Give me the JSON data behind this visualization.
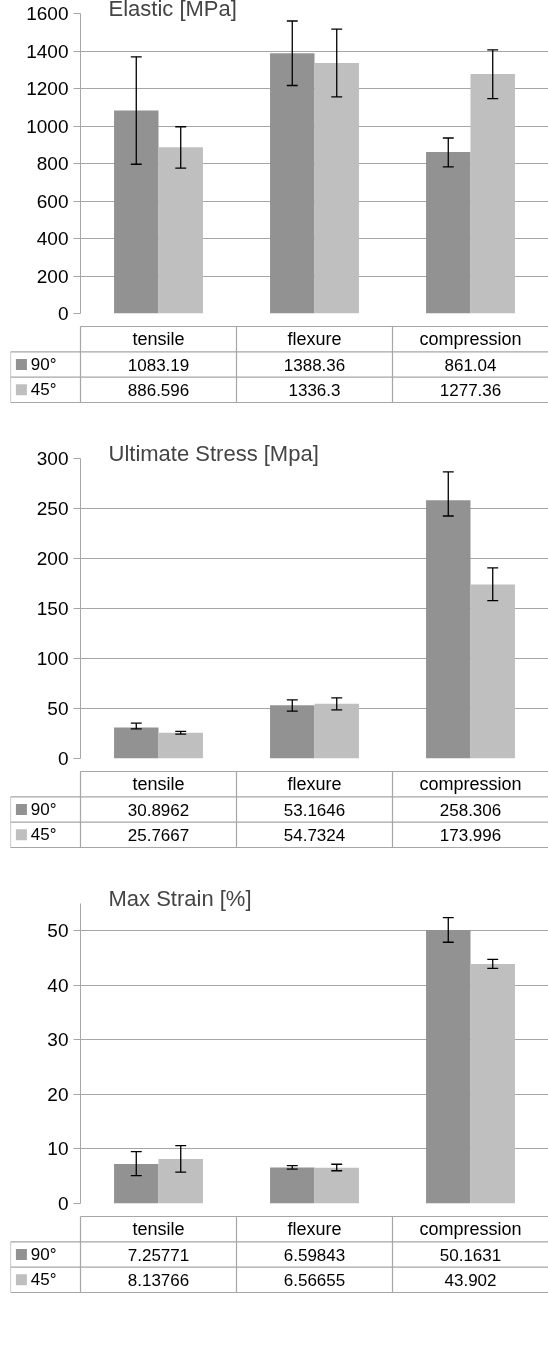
{
  "chart_data": [
    {
      "type": "bar",
      "title": "Elastic [MPa]",
      "categories": [
        "tensile",
        "flexure",
        "compression"
      ],
      "series": [
        {
          "name": "90°",
          "color": "#929292",
          "values": [
            1083.19,
            1388.36,
            861.04
          ],
          "errors": [
            [
              796,
              1369
            ],
            [
              1216,
              1560
            ],
            [
              782,
              936
            ]
          ]
        },
        {
          "name": "45°",
          "color": "#bfbfbf",
          "values": [
            886.596,
            1336.3,
            1277.36
          ],
          "errors": [
            [
              775,
              996
            ],
            [
              1155,
              1517
            ],
            [
              1146,
              1406
            ]
          ]
        }
      ],
      "ylim": [
        0,
        1600
      ],
      "yticks": [
        0,
        200,
        400,
        600,
        800,
        1000,
        1200,
        1400,
        1600
      ],
      "grid": "y",
      "legend": "bottom",
      "data_labels": true
    },
    {
      "type": "bar",
      "title": "Ultimate Stress [Mpa]",
      "categories": [
        "tensile",
        "flexure",
        "compression"
      ],
      "series": [
        {
          "name": "90°",
          "color": "#929292",
          "values": [
            30.8962,
            53.1646,
            258.306
          ],
          "errors": [
            [
              29.6,
              35.3
            ],
            [
              47.3,
              58.6
            ],
            [
              242.5,
              286.6
            ]
          ]
        },
        {
          "name": "45°",
          "color": "#bfbfbf",
          "values": [
            25.7667,
            54.7324,
            173.996
          ],
          "errors": [
            [
              24.4,
              27.2
            ],
            [
              48.7,
              60.7
            ],
            [
              157.8,
              190.6
            ]
          ]
        }
      ],
      "ylim": [
        0,
        300
      ],
      "yticks": [
        0,
        50,
        100,
        150,
        200,
        250,
        300
      ],
      "grid": "y",
      "legend": "bottom",
      "data_labels": true
    },
    {
      "type": "bar",
      "title": "Max Strain [%]",
      "categories": [
        "tensile",
        "flexure",
        "compression"
      ],
      "series": [
        {
          "name": "90°",
          "color": "#929292",
          "values": [
            7.25771,
            6.59843,
            50.1631
          ],
          "errors": [
            [
              5.1,
              9.5
            ],
            [
              6.31,
              6.94
            ],
            [
              47.9,
              52.4
            ]
          ]
        },
        {
          "name": "45°",
          "color": "#bfbfbf",
          "values": [
            8.13766,
            6.56655,
            43.902
          ],
          "errors": [
            [
              5.75,
              10.6
            ],
            [
              6.0,
              7.2
            ],
            [
              43.1,
              44.75
            ]
          ]
        }
      ],
      "ylim": [
        0,
        55
      ],
      "yticks": [
        0,
        10,
        20,
        30,
        40,
        50
      ],
      "grid": "y",
      "legend": "bottom",
      "data_labels": true
    }
  ]
}
